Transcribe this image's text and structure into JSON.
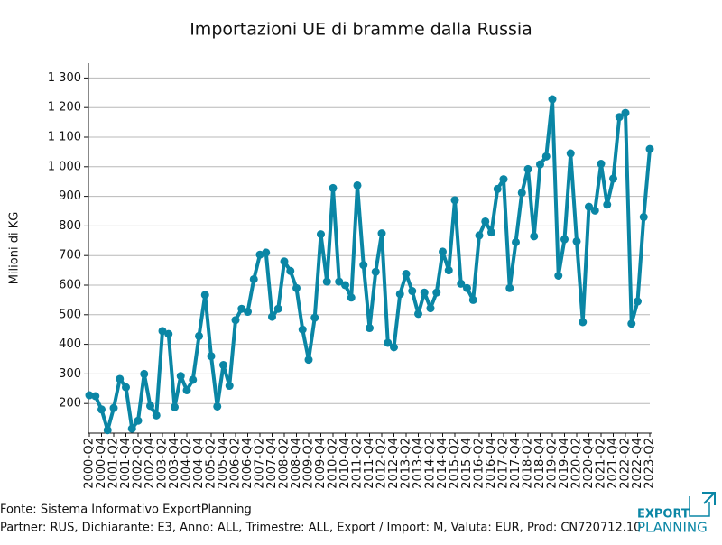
{
  "chart_data": {
    "type": "line",
    "title": "Importazioni UE di bramme dalla Russia",
    "y_label": "Milioni di KG",
    "categories": [
      "2000-Q2",
      null,
      "2000-Q4",
      null,
      "2001-Q2",
      null,
      "2001-Q4",
      null,
      "2002-Q2",
      null,
      "2002-Q4",
      null,
      "2003-Q2",
      null,
      "2003-Q4",
      null,
      "2004-Q2",
      null,
      "2004-Q4",
      null,
      "2005-Q2",
      null,
      "2005-Q4",
      null,
      "2006-Q2",
      null,
      "2006-Q4",
      null,
      "2007-Q2",
      null,
      "2007-Q4",
      null,
      "2008-Q2",
      null,
      "2008-Q4",
      null,
      "2009-Q2",
      null,
      "2009-Q4",
      null,
      "2010-Q2",
      null,
      "2010-Q4",
      null,
      "2011-Q2",
      null,
      "2011-Q4",
      null,
      "2012-Q2",
      null,
      "2012-Q4",
      null,
      "2013-Q2",
      null,
      "2013-Q4",
      null,
      "2014-Q2",
      null,
      "2014-Q4",
      null,
      "2015-Q2",
      null,
      "2015-Q4",
      null,
      "2016-Q2",
      null,
      "2016-Q4",
      null,
      "2017-Q2",
      null,
      "2017-Q4",
      null,
      "2018-Q2",
      null,
      "2018-Q4",
      null,
      "2019-Q2",
      null,
      "2019-Q4",
      null,
      "2020-Q2",
      null,
      "2020-Q4",
      null,
      "2021-Q2",
      null,
      "2021-Q4",
      null,
      "2022-Q2",
      null,
      "2022-Q4",
      null,
      "2023-Q2"
    ],
    "values": [
      228,
      225,
      180,
      110,
      185,
      283,
      255,
      115,
      142,
      300,
      192,
      160,
      445,
      435,
      188,
      293,
      245,
      280,
      428,
      567,
      360,
      190,
      330,
      260,
      482,
      520,
      510,
      620,
      703,
      710,
      493,
      520,
      680,
      648,
      590,
      450,
      348,
      490,
      772,
      612,
      928,
      612,
      600,
      558,
      937,
      668,
      455,
      645,
      775,
      405,
      390,
      570,
      638,
      580,
      503,
      575,
      522,
      575,
      713,
      650,
      887,
      605,
      590,
      550,
      768,
      815,
      778,
      925,
      958,
      590,
      745,
      912,
      992,
      765,
      1008,
      1035,
      1228,
      632,
      755,
      1045,
      748,
      475,
      865,
      852,
      1010,
      872,
      960,
      1168,
      1182,
      470,
      545,
      830,
      1060
    ],
    "color": "#0a86a5",
    "ylim": [
      100,
      1350
    ],
    "yticks": [
      200,
      300,
      400,
      500,
      600,
      700,
      800,
      900,
      {
        "value": 1000,
        "label": "1 000"
      },
      {
        "value": 1100,
        "label": "1 100"
      },
      {
        "value": 1200,
        "label": "1 200"
      },
      {
        "value": 1300,
        "label": "1 300"
      }
    ],
    "grid": true
  },
  "footer": {
    "source": "Fonte: Sistema Informativo ExportPlanning",
    "details": "Partner: RUS, Dichiarante: E3, Anno: ALL, Trimestre: ALL, Export / Import: M, Valuta: EUR, Prod: CN720712.10"
  },
  "logo": {
    "line1": "EXPORT",
    "line2": "PLANNING"
  }
}
